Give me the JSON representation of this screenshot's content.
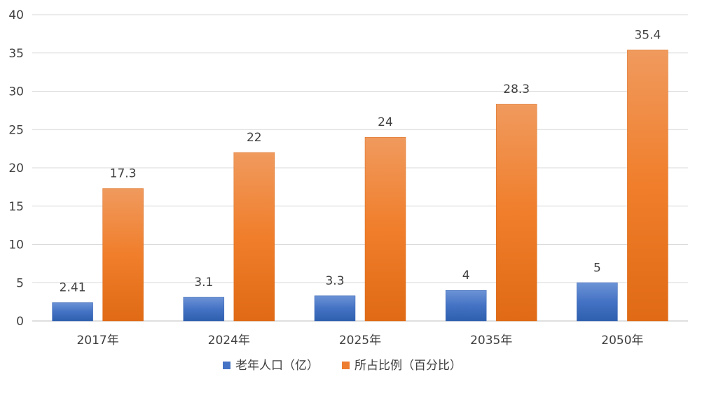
{
  "chart_data": {
    "type": "bar",
    "categories": [
      "2017年",
      "2024年",
      "2025年",
      "2035年",
      "2050年"
    ],
    "series": [
      {
        "name": "老年人口（亿）",
        "values": [
          2.41,
          3.1,
          3.3,
          4,
          5
        ],
        "color": "#4472C4"
      },
      {
        "name": "所占比例（百分比）",
        "values": [
          17.3,
          22,
          24,
          28.3,
          35.4
        ],
        "color": "#ED7D31"
      }
    ],
    "data_labels": [
      [
        "2.41",
        "3.1",
        "3.3",
        "4",
        "5"
      ],
      [
        "17.3",
        "22",
        "24",
        "28.3",
        "35.4"
      ]
    ],
    "yticks": [
      "0",
      "5",
      "10",
      "15",
      "20",
      "25",
      "30",
      "35",
      "40"
    ],
    "ylim": [
      0,
      40
    ],
    "grid": true,
    "legend_position": "bottom",
    "title": "",
    "xlabel": "",
    "ylabel": ""
  }
}
